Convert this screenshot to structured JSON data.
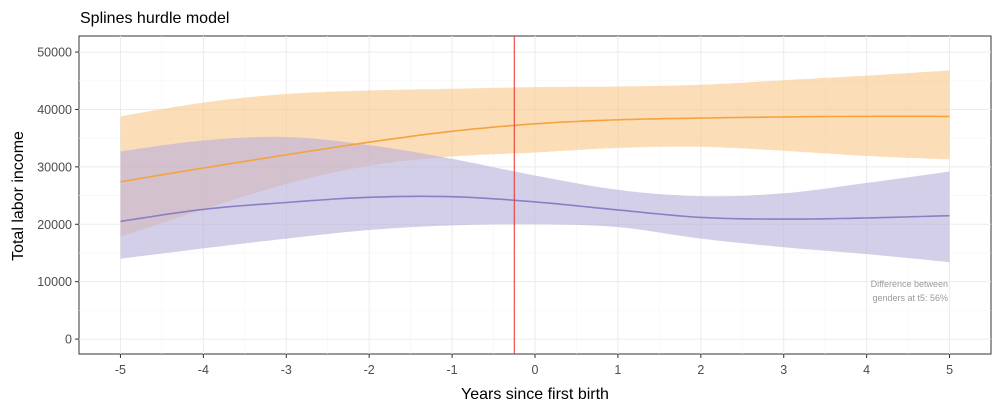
{
  "chart_data": {
    "type": "line",
    "title": "Splines hurdle model",
    "xlabel": "Years since first birth",
    "ylabel": "Total labor income",
    "xlim": [
      -5.5,
      5.5
    ],
    "ylim": [
      -2600,
      52800
    ],
    "x_ticks": [
      -5,
      -4,
      -3,
      -2,
      -1,
      0,
      1,
      2,
      3,
      4,
      5
    ],
    "y_ticks": [
      0,
      10000,
      20000,
      30000,
      40000,
      50000
    ],
    "x_tick_labels": [
      "-5",
      "-4",
      "-3",
      "-2",
      "-1",
      "0",
      "1",
      "2",
      "3",
      "4",
      "5"
    ],
    "y_tick_labels": [
      "0",
      "10000",
      "20000",
      "30000",
      "40000",
      "50000"
    ],
    "grid": true,
    "vline": {
      "x": -0.25,
      "color": "#e8302a"
    },
    "annotation": [
      "Difference between",
      "genders at t5: 56%"
    ],
    "series": [
      {
        "color": "#f5a340",
        "ribbon_color": "#f8c88d",
        "x": [
          -5,
          -4,
          -3,
          -2,
          -1,
          0,
          1,
          2,
          3,
          4,
          5
        ],
        "values": [
          27400,
          29800,
          32100,
          34300,
          36200,
          37500,
          38200,
          38500,
          38700,
          38800,
          38800
        ],
        "lower": [
          17800,
          22600,
          27000,
          30200,
          31800,
          32500,
          33300,
          33500,
          32800,
          31900,
          31300
        ],
        "upper": [
          38800,
          41200,
          42700,
          43300,
          43600,
          43900,
          44000,
          44300,
          45100,
          45900,
          46800
        ]
      },
      {
        "color": "#8a7fc4",
        "ribbon_color": "#b9b1dc",
        "x": [
          -5,
          -4,
          -3,
          -2,
          -1,
          0,
          1,
          2,
          3,
          4,
          5
        ],
        "values": [
          20500,
          22600,
          23800,
          24700,
          24800,
          23900,
          22500,
          21200,
          20900,
          21100,
          21500
        ],
        "lower": [
          14000,
          15800,
          17500,
          19000,
          19800,
          20000,
          19500,
          17500,
          16000,
          14800,
          13400
        ],
        "upper": [
          32700,
          34600,
          35200,
          33800,
          31400,
          28500,
          26000,
          24900,
          25400,
          27200,
          29200
        ]
      }
    ]
  }
}
